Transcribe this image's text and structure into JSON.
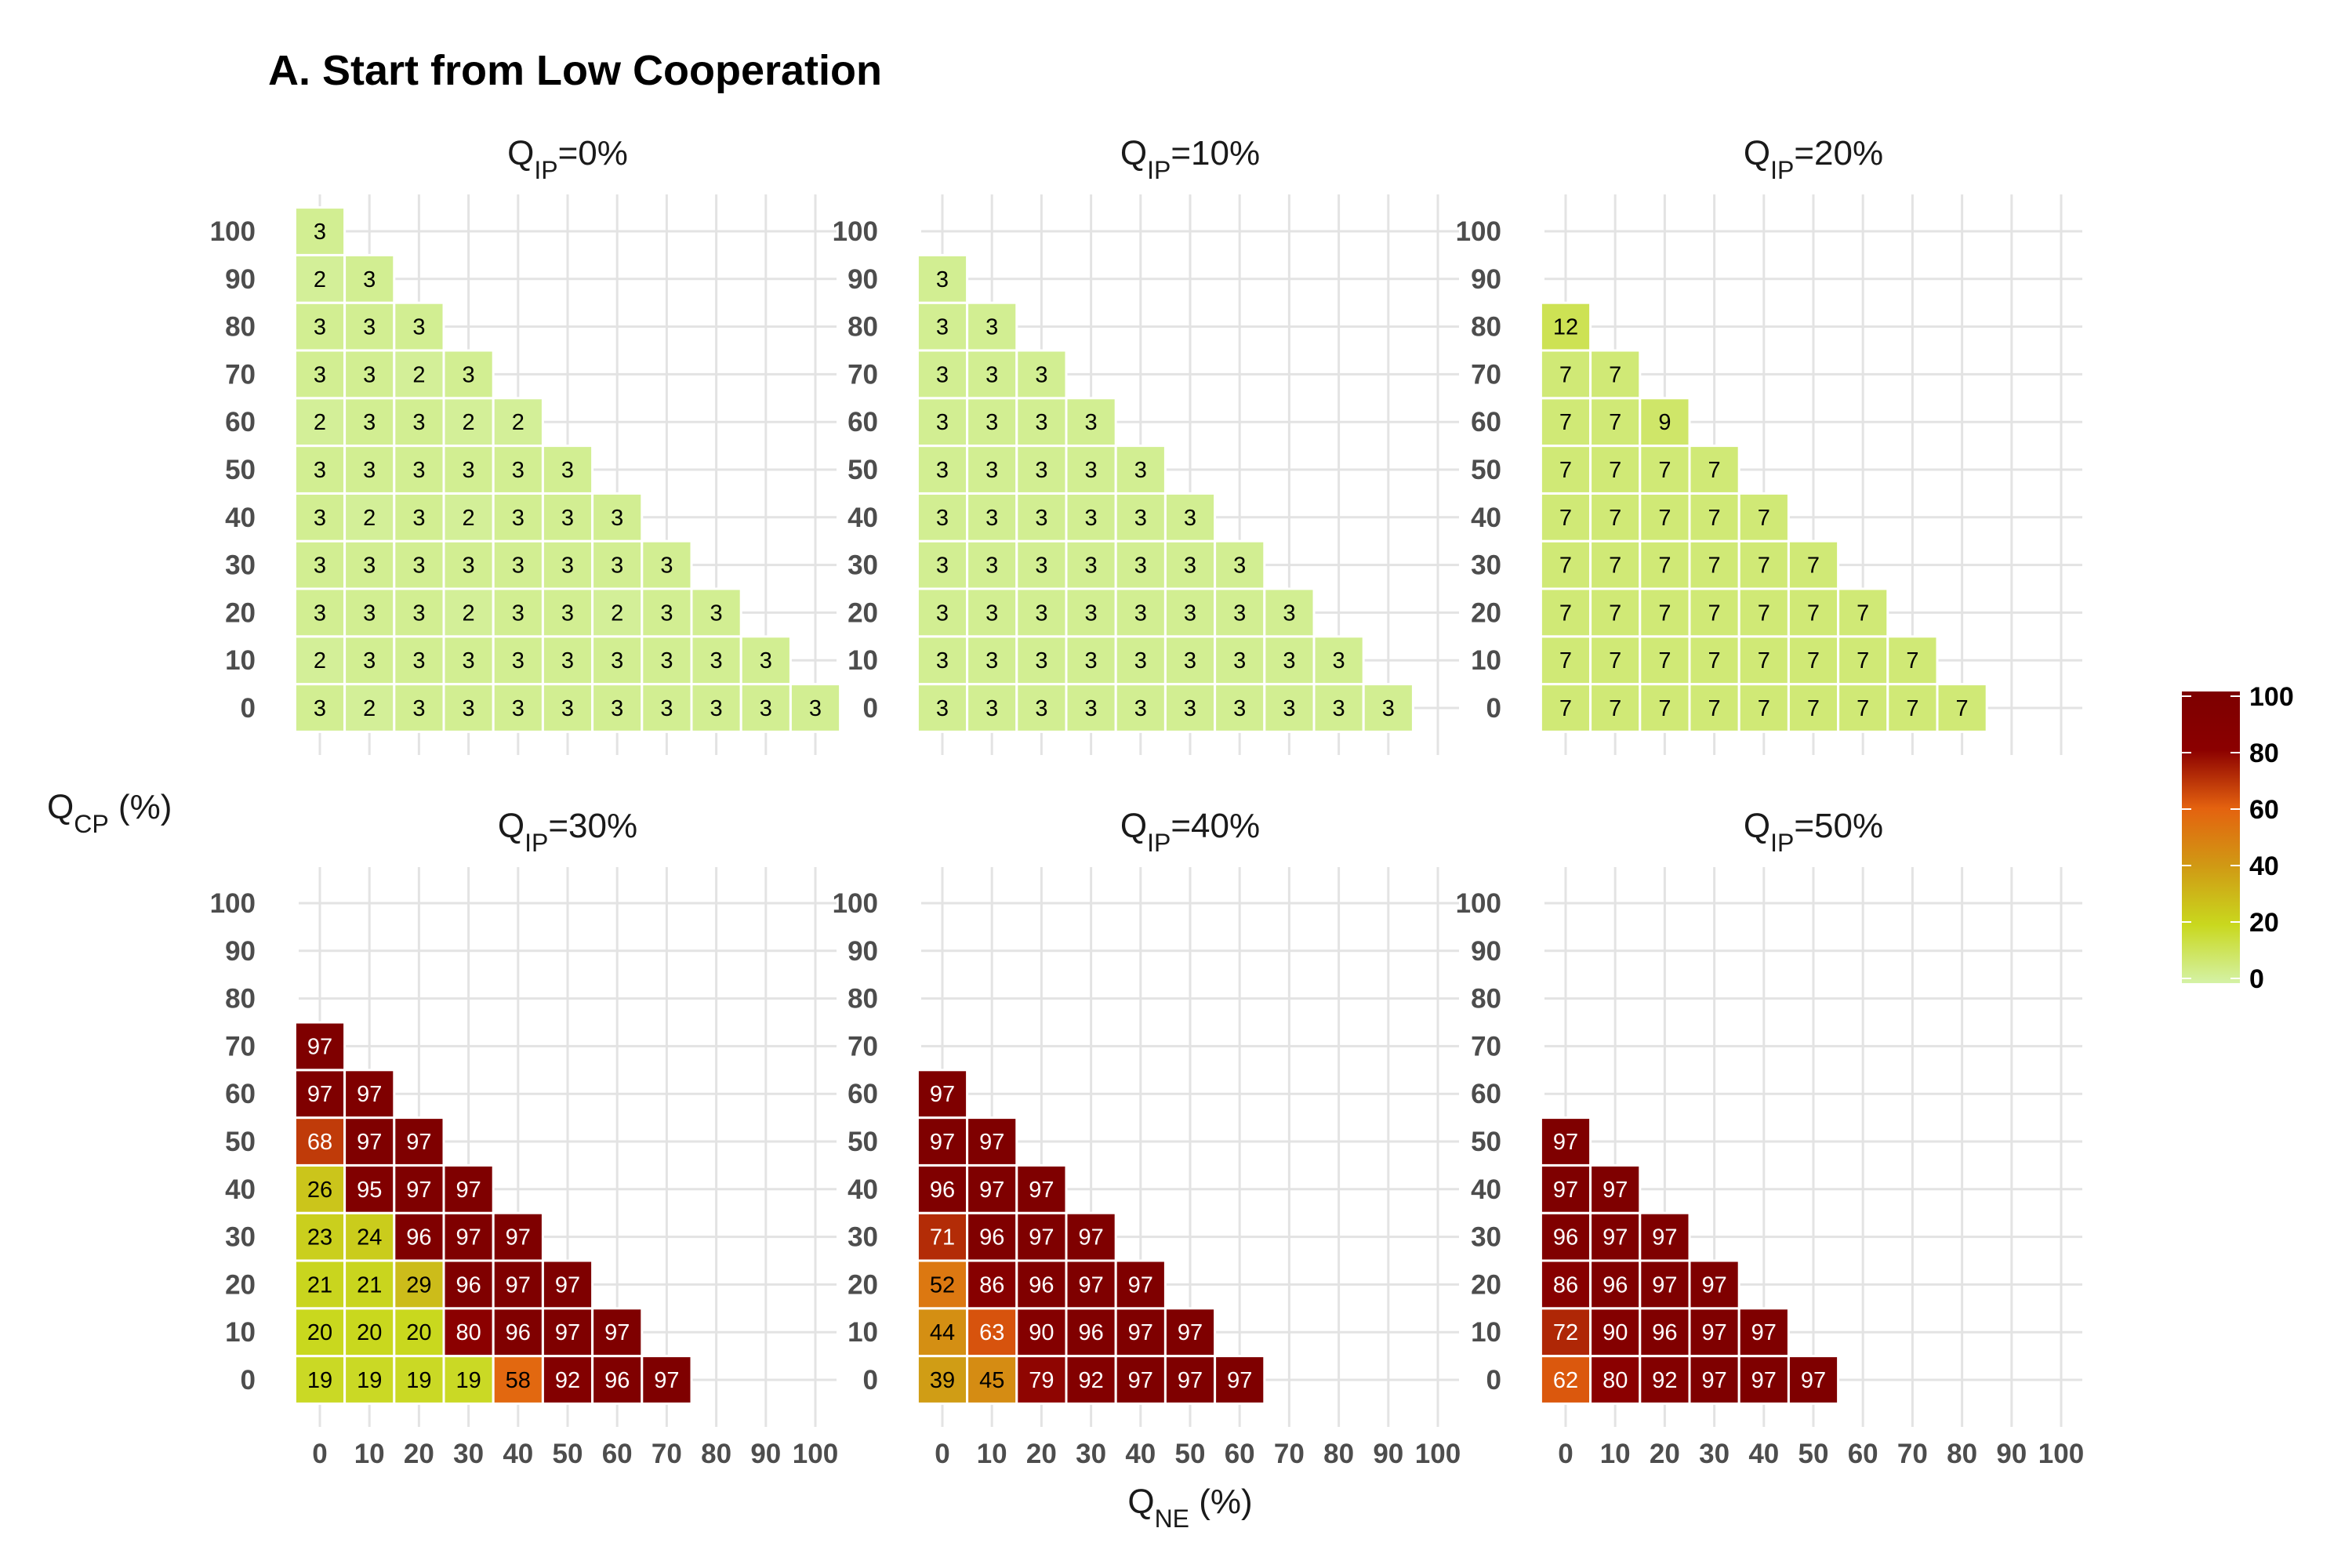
{
  "chart_data": {
    "type": "heatmap",
    "title": "A. Start from Low Cooperation",
    "facet_var": "Q",
    "facet_sub": "IP",
    "xlabel_main": "Q",
    "xlabel_sub": "NE",
    "xlabel_unit": " (%)",
    "ylabel_main": "Q",
    "ylabel_sub": "CP",
    "ylabel_unit": " (%)",
    "x_ticks": [
      "0",
      "10",
      "20",
      "30",
      "40",
      "50",
      "60",
      "70",
      "80",
      "90",
      "100"
    ],
    "y_ticks": [
      "0",
      "10",
      "20",
      "30",
      "40",
      "50",
      "60",
      "70",
      "80",
      "90",
      "100"
    ],
    "legend": {
      "ticks": [
        "0",
        "20",
        "40",
        "60",
        "80",
        "100"
      ],
      "range": [
        0,
        100
      ],
      "colors": [
        "#d4f2a6",
        "#c9d81e",
        "#d09a14",
        "#e4620f",
        "#8b0000",
        "#7d0000"
      ]
    },
    "facets": [
      {
        "label_prefix": "=",
        "label_value": "0%",
        "rows": [
          [
            3,
            2,
            3,
            3,
            3,
            3,
            3,
            3,
            3,
            3,
            3
          ],
          [
            2,
            3,
            3,
            3,
            3,
            3,
            3,
            3,
            3,
            3
          ],
          [
            3,
            3,
            3,
            2,
            3,
            3,
            2,
            3,
            3
          ],
          [
            3,
            3,
            3,
            3,
            3,
            3,
            3,
            3
          ],
          [
            3,
            2,
            3,
            2,
            3,
            3,
            3
          ],
          [
            3,
            3,
            3,
            3,
            3,
            3
          ],
          [
            2,
            3,
            3,
            2,
            2
          ],
          [
            3,
            3,
            2,
            3
          ],
          [
            3,
            3,
            3
          ],
          [
            2,
            3
          ],
          [
            3
          ]
        ]
      },
      {
        "label_prefix": "=",
        "label_value": "10%",
        "rows": [
          [
            3,
            3,
            3,
            3,
            3,
            3,
            3,
            3,
            3,
            3
          ],
          [
            3,
            3,
            3,
            3,
            3,
            3,
            3,
            3,
            3
          ],
          [
            3,
            3,
            3,
            3,
            3,
            3,
            3,
            3
          ],
          [
            3,
            3,
            3,
            3,
            3,
            3,
            3
          ],
          [
            3,
            3,
            3,
            3,
            3,
            3
          ],
          [
            3,
            3,
            3,
            3,
            3
          ],
          [
            3,
            3,
            3,
            3
          ],
          [
            3,
            3,
            3
          ],
          [
            3,
            3
          ],
          [
            3
          ]
        ]
      },
      {
        "label_prefix": "=",
        "label_value": "20%",
        "rows": [
          [
            7,
            7,
            7,
            7,
            7,
            7,
            7,
            7,
            7
          ],
          [
            7,
            7,
            7,
            7,
            7,
            7,
            7,
            7
          ],
          [
            7,
            7,
            7,
            7,
            7,
            7,
            7
          ],
          [
            7,
            7,
            7,
            7,
            7,
            7
          ],
          [
            7,
            7,
            7,
            7,
            7
          ],
          [
            7,
            7,
            7,
            7
          ],
          [
            7,
            7,
            9
          ],
          [
            7,
            7
          ],
          [
            12
          ]
        ]
      },
      {
        "label_prefix": "=",
        "label_value": "30%",
        "rows": [
          [
            19,
            19,
            19,
            19,
            58,
            92,
            96,
            97
          ],
          [
            20,
            20,
            20,
            80,
            96,
            97,
            97
          ],
          [
            21,
            21,
            29,
            96,
            97,
            97
          ],
          [
            23,
            24,
            96,
            97,
            97
          ],
          [
            26,
            95,
            97,
            97
          ],
          [
            68,
            97,
            97
          ],
          [
            97,
            97
          ],
          [
            97
          ]
        ]
      },
      {
        "label_prefix": "=",
        "label_value": "40%",
        "rows": [
          [
            39,
            45,
            79,
            92,
            97,
            97,
            97
          ],
          [
            44,
            63,
            90,
            96,
            97,
            97
          ],
          [
            52,
            86,
            96,
            97,
            97
          ],
          [
            71,
            96,
            97,
            97
          ],
          [
            96,
            97,
            97
          ],
          [
            97,
            97
          ],
          [
            97
          ]
        ]
      },
      {
        "label_prefix": "=",
        "label_value": "50%",
        "rows": [
          [
            62,
            80,
            92,
            97,
            97,
            97
          ],
          [
            72,
            90,
            96,
            97,
            97
          ],
          [
            86,
            96,
            97,
            97
          ],
          [
            96,
            97,
            97
          ],
          [
            97,
            97
          ],
          [
            97
          ]
        ]
      }
    ]
  }
}
